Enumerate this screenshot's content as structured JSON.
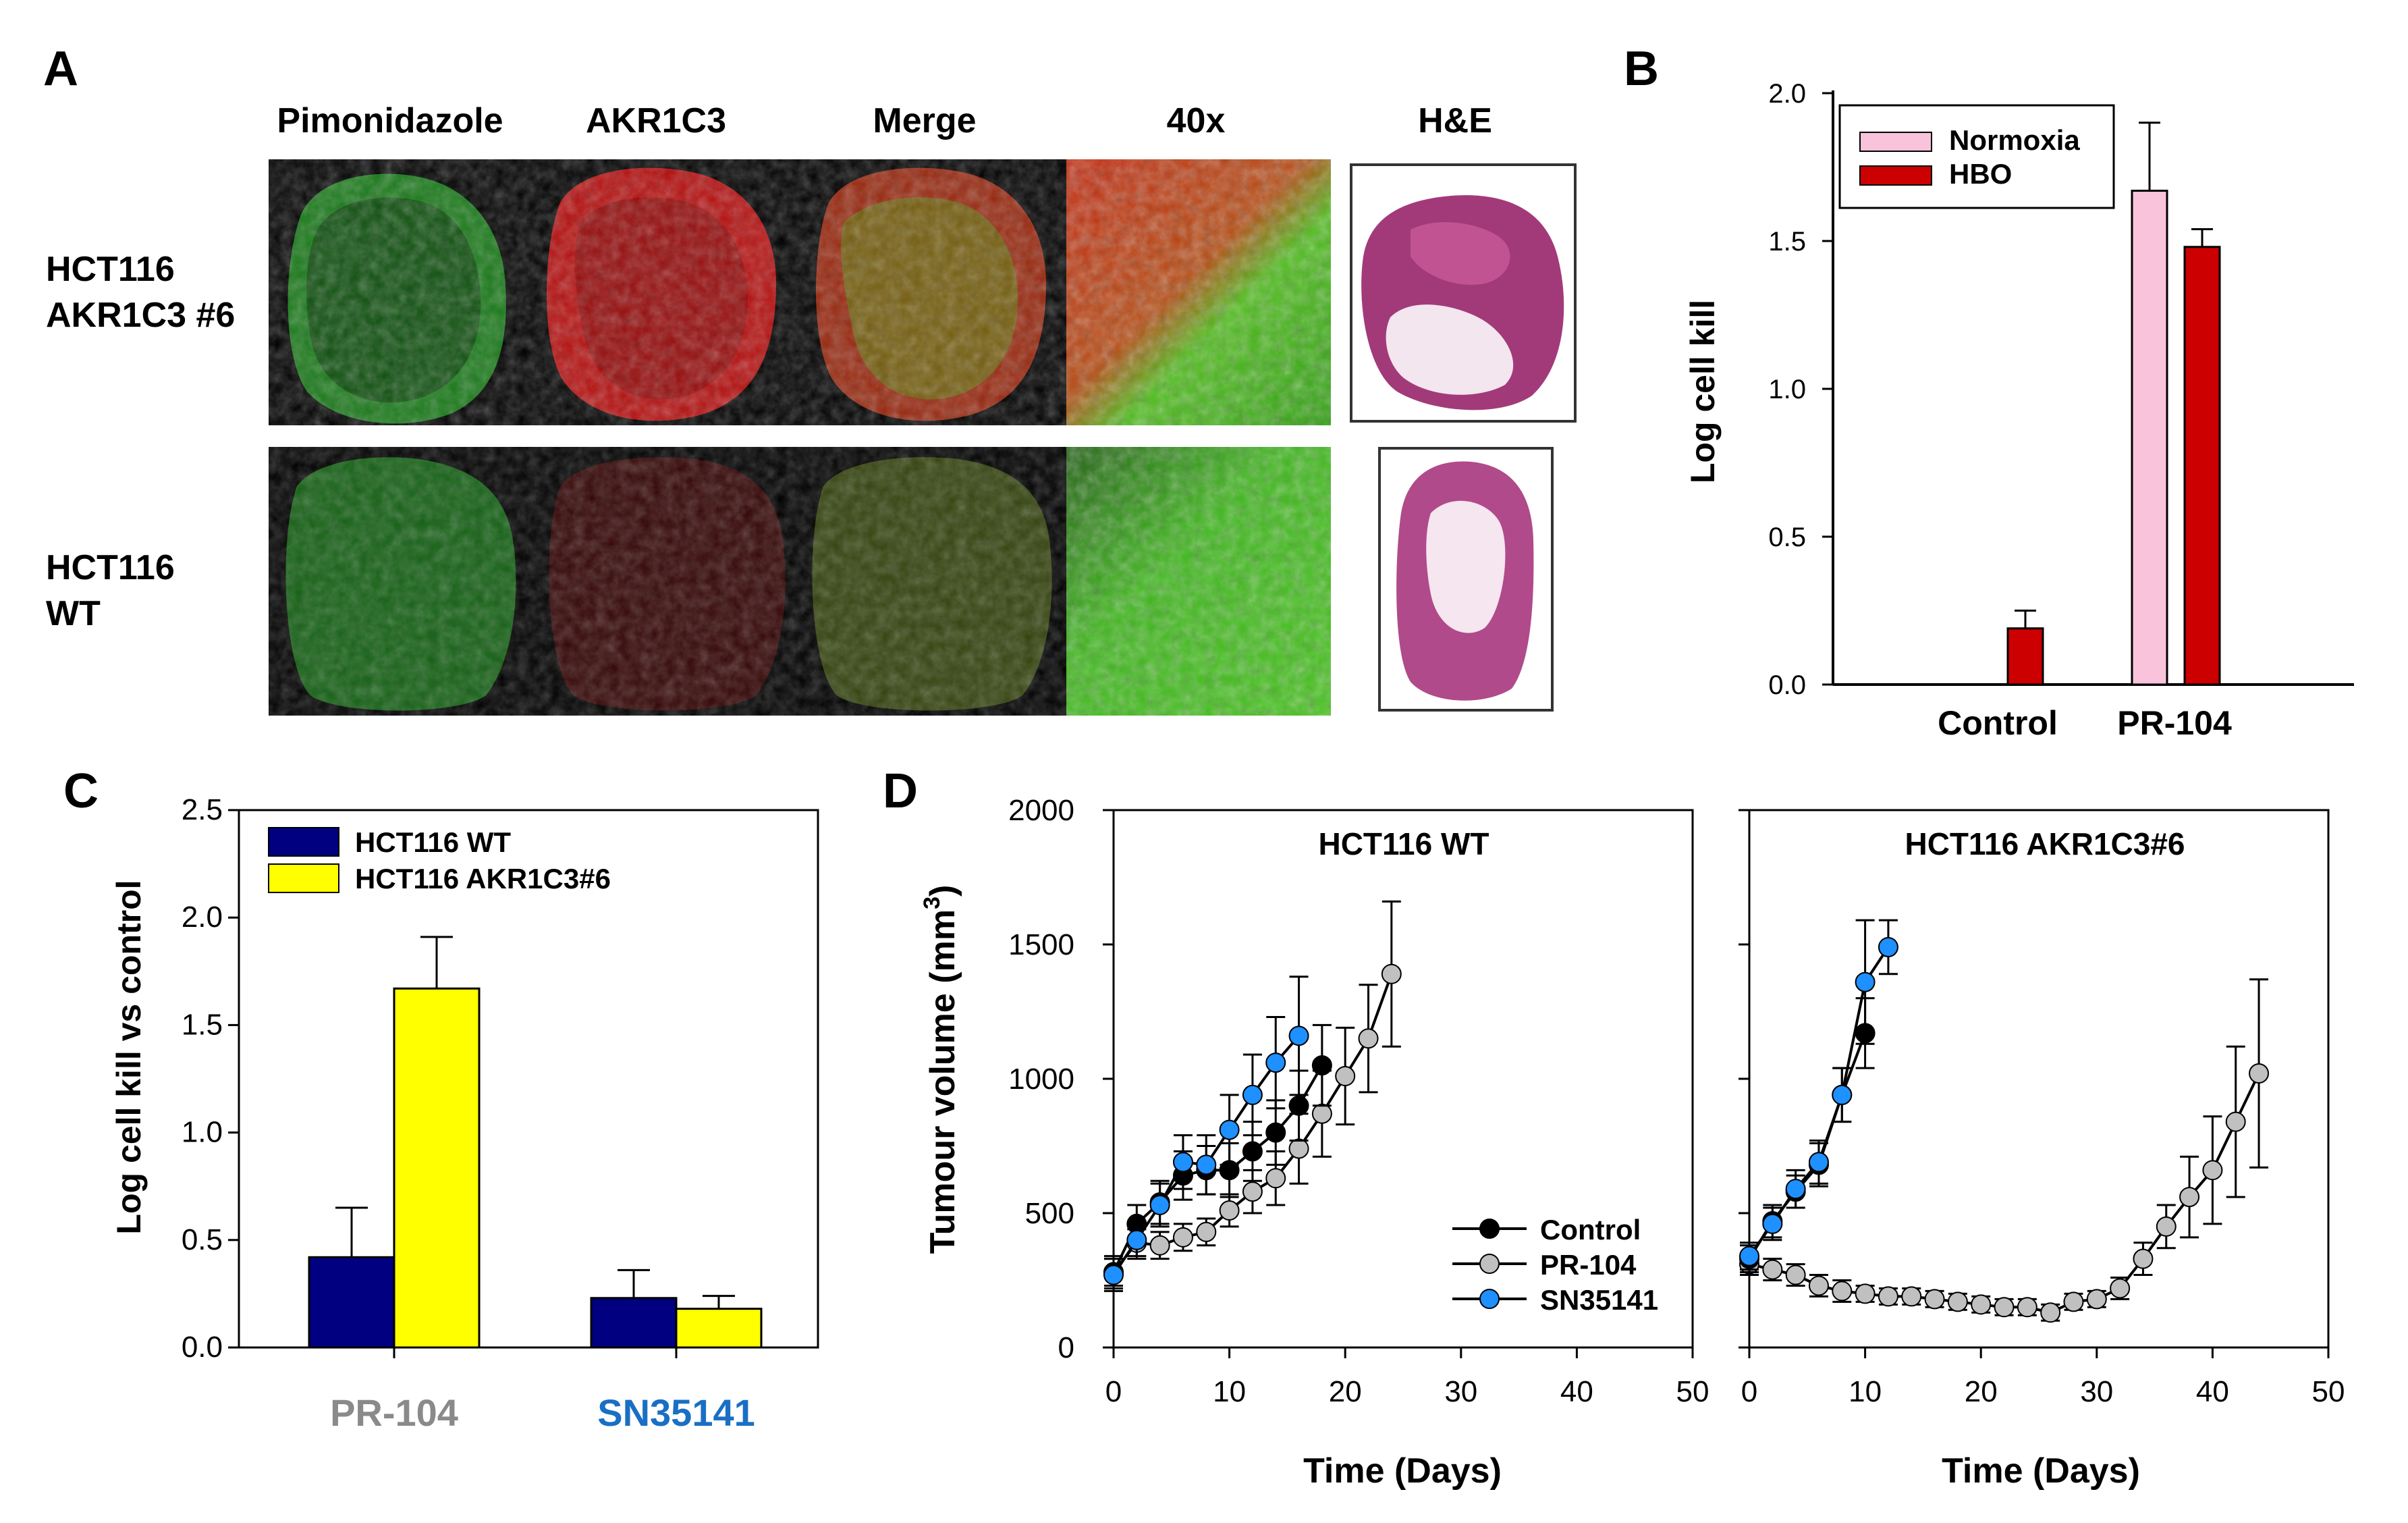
{
  "colors": {
    "normoxia": "#f9c3dc",
    "hbo": "#cc0000",
    "wt": "#000080",
    "akr": "#ffff00",
    "pr104_label": "#8a8a8a",
    "sn35141_label": "#1a6fc4",
    "control_marker": "#000000",
    "pr104_marker": "#c0c0c0",
    "sn_marker": "#1e90ff"
  },
  "panel_a": {
    "letter": "A",
    "columns": [
      "Pimonidazole",
      "AKR1C3",
      "Merge",
      "40x",
      "H&E"
    ],
    "rows": [
      {
        "line1": "HCT116",
        "line2": "AKR1C3 #6"
      },
      {
        "line1": "HCT116",
        "line2": "WT"
      }
    ]
  },
  "chart_data": [
    {
      "id": "B",
      "type": "bar",
      "panel_letter": "B",
      "categories": [
        "Control",
        "PR-104"
      ],
      "ylabel": "Log cell kill",
      "ylim": [
        0,
        2.0
      ],
      "yticks": [
        "0.0",
        "0.5",
        "1.0",
        "1.5",
        "2.0"
      ],
      "legend_position": "top-left",
      "series": [
        {
          "name": "Normoxia",
          "values": [
            0,
            1.67
          ],
          "errors": [
            0,
            0.23
          ]
        },
        {
          "name": "HBO",
          "values": [
            0.19,
            1.48
          ],
          "errors": [
            0.06,
            0.06
          ]
        }
      ]
    },
    {
      "id": "C",
      "type": "bar",
      "panel_letter": "C",
      "categories": [
        "PR-104",
        "SN35141"
      ],
      "ylabel": "Log cell kill vs control",
      "ylim": [
        0,
        2.5
      ],
      "yticks": [
        "0.0",
        "0.5",
        "1.0",
        "1.5",
        "2.0",
        "2.5"
      ],
      "legend_position": "top-left",
      "series": [
        {
          "name": "HCT116 WT",
          "values": [
            0.42,
            0.23
          ],
          "errors": [
            0.23,
            0.13
          ]
        },
        {
          "name": "HCT116 AKR1C3#6",
          "values": [
            1.67,
            0.18
          ],
          "errors": [
            0.24,
            0.06
          ]
        }
      ]
    },
    {
      "id": "D",
      "type": "line",
      "panel_letter": "D",
      "ylabel": "Tumour volume (mm",
      "ylabel_sup": "3",
      "ylabel_end": ")",
      "xlabel": "Time (Days)",
      "ylim": [
        0,
        2000
      ],
      "xlim": [
        0,
        50
      ],
      "yticks": [
        "0",
        "500",
        "1000",
        "1500",
        "2000"
      ],
      "xticks": [
        "0",
        "10",
        "20",
        "30",
        "40",
        "50"
      ],
      "legend_position": "bottom-right",
      "legend": [
        "Control",
        "PR-104",
        "SN35141"
      ],
      "subplots": [
        {
          "title": "HCT116 WT",
          "series": [
            {
              "name": "Control",
              "x": [
                0,
                2,
                4,
                6,
                8,
                10,
                12,
                14,
                16,
                18
              ],
              "y": [
                280,
                460,
                540,
                640,
                660,
                660,
                730,
                800,
                900,
                1050
              ],
              "err": [
                60,
                70,
                80,
                90,
                90,
                100,
                110,
                120,
                130,
                150
              ]
            },
            {
              "name": "PR-104",
              "x": [
                0,
                2,
                4,
                6,
                8,
                10,
                12,
                14,
                16,
                18,
                20,
                22,
                24
              ],
              "y": [
                280,
                390,
                380,
                410,
                430,
                510,
                580,
                630,
                740,
                870,
                1010,
                1150,
                1390
              ],
              "err": [
                50,
                50,
                50,
                50,
                50,
                60,
                80,
                100,
                130,
                160,
                180,
                200,
                270
              ]
            },
            {
              "name": "SN35141",
              "x": [
                0,
                2,
                4,
                6,
                8,
                10,
                12,
                14,
                16
              ],
              "y": [
                270,
                400,
                530,
                690,
                680,
                810,
                940,
                1060,
                1160
              ],
              "err": [
                60,
                70,
                80,
                100,
                110,
                130,
                150,
                170,
                220
              ]
            }
          ]
        },
        {
          "title": "HCT116 AKR1C3#6",
          "series": [
            {
              "name": "Control",
              "x": [
                0,
                2,
                4,
                6,
                8,
                10
              ],
              "y": [
                330,
                470,
                580,
                680,
                940,
                1170
              ],
              "err": [
                50,
                60,
                60,
                80,
                100,
                130
              ]
            },
            {
              "name": "PR-104",
              "x": [
                0,
                2,
                4,
                6,
                8,
                10,
                12,
                14,
                16,
                18,
                20,
                22,
                24,
                26,
                28,
                30,
                32,
                34,
                36,
                38,
                40,
                42,
                44
              ],
              "y": [
                310,
                290,
                270,
                230,
                210,
                200,
                190,
                190,
                180,
                170,
                160,
                150,
                150,
                130,
                170,
                180,
                220,
                330,
                450,
                560,
                660,
                840,
                1020
              ],
              "err": [
                40,
                40,
                40,
                40,
                40,
                30,
                30,
                30,
                30,
                30,
                30,
                30,
                30,
                30,
                30,
                30,
                40,
                60,
                80,
                150,
                200,
                280,
                350
              ]
            },
            {
              "name": "SN35141",
              "x": [
                0,
                2,
                4,
                6,
                8,
                10,
                12
              ],
              "y": [
                340,
                460,
                590,
                690,
                940,
                1360,
                1490
              ],
              "err": [
                50,
                60,
                70,
                80,
                100,
                230,
                100
              ]
            }
          ]
        }
      ]
    }
  ]
}
